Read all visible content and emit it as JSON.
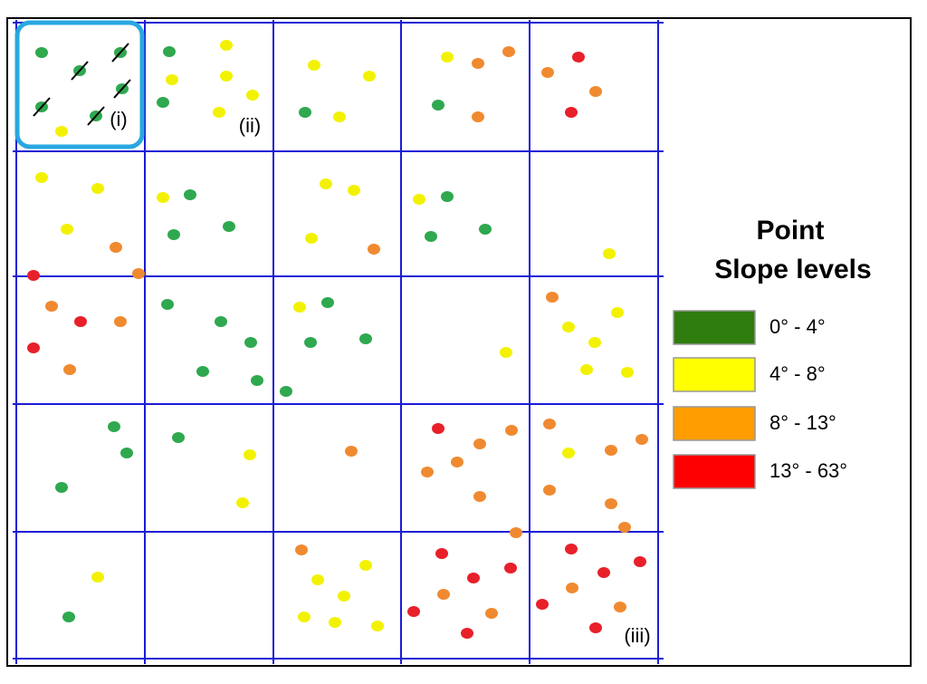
{
  "labels": [
    "(i)",
    "(ii)",
    "(iii)"
  ],
  "legend": {
    "title": [
      "Point",
      "Slope levels"
    ],
    "items": [
      {
        "label": "0° - 4°",
        "color": "#2e7d0e"
      },
      {
        "label": "4° - 8°",
        "color": "#ffff00"
      },
      {
        "label": "8° - 13°",
        "color": "#ff9c00"
      },
      {
        "label": "13° - 63°",
        "color": "#ff0000"
      }
    ]
  }
}
